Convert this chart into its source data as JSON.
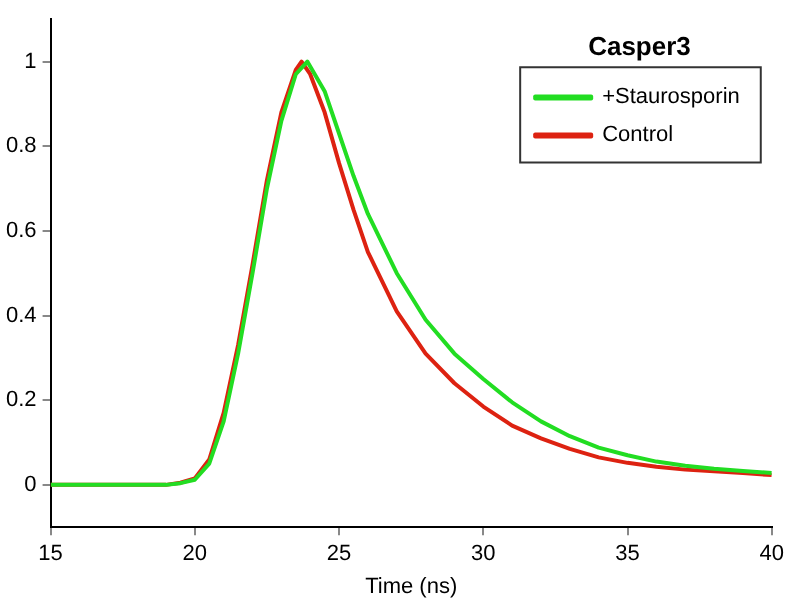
{
  "chart_data": {
    "type": "line",
    "xlabel": "Time (ns)",
    "legend_title": "Casper3",
    "legend": "top right",
    "grid": false,
    "marker": "none",
    "line_style": "solid",
    "xlim": [
      15,
      40
    ],
    "xticks": [
      15,
      20,
      25,
      30,
      35,
      40
    ],
    "ylim": [
      -0.1,
      1.1
    ],
    "yticks": [
      0,
      0.2,
      0.4,
      0.6,
      0.8,
      1
    ],
    "series": [
      {
        "name": "+Staurosporin",
        "color": "#22dd22",
        "x": [
          15,
          19,
          19.5,
          20,
          20.5,
          21,
          21.5,
          22,
          22.5,
          23,
          23.5,
          23.9,
          24.5,
          25,
          25.5,
          26,
          27,
          28,
          29,
          30,
          31,
          32,
          33,
          34,
          35,
          36,
          37,
          38,
          39,
          40
        ],
        "values": [
          0,
          0,
          0.004,
          0.012,
          0.05,
          0.15,
          0.31,
          0.5,
          0.7,
          0.86,
          0.97,
          1,
          0.93,
          0.83,
          0.73,
          0.64,
          0.5,
          0.39,
          0.31,
          0.25,
          0.195,
          0.15,
          0.115,
          0.088,
          0.07,
          0.055,
          0.045,
          0.038,
          0.033,
          0.028
        ]
      },
      {
        "name": "Control",
        "color": "#dd2211",
        "x": [
          15,
          19,
          19.5,
          20,
          20.5,
          21,
          21.5,
          22,
          22.5,
          23,
          23.5,
          23.7,
          24,
          24.5,
          25,
          25.5,
          26,
          27,
          28,
          29,
          30,
          31,
          32,
          33,
          34,
          35,
          36,
          37,
          38,
          39,
          40
        ],
        "values": [
          0,
          0,
          0.005,
          0.015,
          0.06,
          0.17,
          0.33,
          0.52,
          0.72,
          0.88,
          0.98,
          1,
          0.97,
          0.88,
          0.76,
          0.65,
          0.55,
          0.41,
          0.31,
          0.24,
          0.185,
          0.14,
          0.11,
          0.085,
          0.065,
          0.052,
          0.043,
          0.036,
          0.032,
          0.028,
          0.023
        ]
      }
    ]
  }
}
